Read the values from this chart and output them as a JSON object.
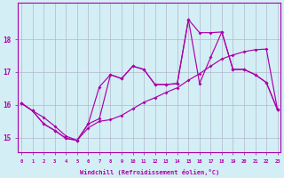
{
  "xlabel": "Windchill (Refroidissement éolien,°C)",
  "background_color": "#d4eef5",
  "line_color": "#aa00aa",
  "grid_color": "#b0b8cc",
  "xtick_labels": [
    "0",
    "1",
    "2",
    "3",
    "4",
    "5",
    "6",
    "7",
    "8",
    "9",
    "10",
    "11",
    "12",
    "13",
    "14",
    "15",
    "16",
    "17",
    "18",
    "19",
    "20",
    "21",
    "22",
    "23"
  ],
  "ytick_values": [
    15,
    16,
    17,
    18
  ],
  "ylim": [
    14.55,
    19.1
  ],
  "xlim": [
    -0.3,
    23.3
  ],
  "line1_x": [
    0,
    1,
    2,
    3,
    4,
    5,
    6,
    7,
    8,
    9,
    10,
    11,
    12,
    13,
    14,
    15,
    16,
    17,
    18,
    19,
    20,
    21,
    22,
    23
  ],
  "line1_y": [
    16.05,
    15.82,
    15.62,
    15.35,
    15.05,
    14.92,
    15.3,
    15.5,
    15.55,
    15.68,
    15.88,
    16.08,
    16.22,
    16.38,
    16.52,
    16.75,
    16.95,
    17.18,
    17.4,
    17.52,
    17.62,
    17.68,
    17.7,
    15.85
  ],
  "line2_x": [
    0,
    1,
    2,
    3,
    4,
    5,
    6,
    7,
    8,
    9,
    10,
    11,
    12,
    13,
    14,
    15,
    16,
    17,
    18,
    19,
    20,
    21,
    22,
    23
  ],
  "line2_y": [
    16.05,
    15.82,
    15.42,
    15.22,
    14.98,
    14.92,
    15.42,
    16.55,
    16.92,
    16.8,
    17.18,
    17.08,
    16.62,
    16.62,
    16.65,
    18.6,
    18.2,
    18.2,
    18.22,
    17.08,
    17.08,
    16.92,
    16.68,
    15.85
  ],
  "line3_x": [
    0,
    1,
    2,
    3,
    4,
    5,
    6,
    7,
    8,
    9,
    10,
    11,
    12,
    13,
    14,
    15,
    16,
    17,
    18,
    19,
    20,
    21,
    22,
    23
  ],
  "line3_y": [
    16.05,
    15.82,
    15.42,
    15.22,
    14.98,
    14.92,
    15.42,
    15.58,
    16.92,
    16.8,
    17.18,
    17.08,
    16.62,
    16.62,
    16.65,
    18.6,
    16.65,
    17.45,
    18.22,
    17.08,
    17.08,
    16.92,
    16.68,
    15.85
  ]
}
